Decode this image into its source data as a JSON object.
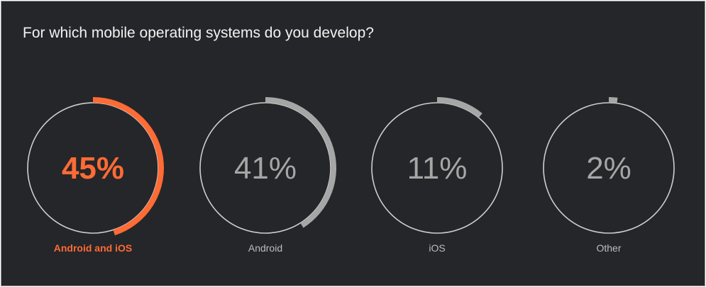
{
  "title": "For which mobile operating systems do you develop?",
  "chart_data": {
    "type": "radial-progress",
    "title": "For which mobile operating systems do you develop?",
    "categories": [
      "Android and iOS",
      "Android",
      "iOS",
      "Other"
    ],
    "values": [
      45,
      41,
      11,
      2
    ],
    "value_labels": [
      "45%",
      "41%",
      "11%",
      "2%"
    ],
    "unit": "%",
    "highlight_color": "#ff6b35",
    "default_color": "#a6a6a6",
    "highlighted_index": 0
  }
}
